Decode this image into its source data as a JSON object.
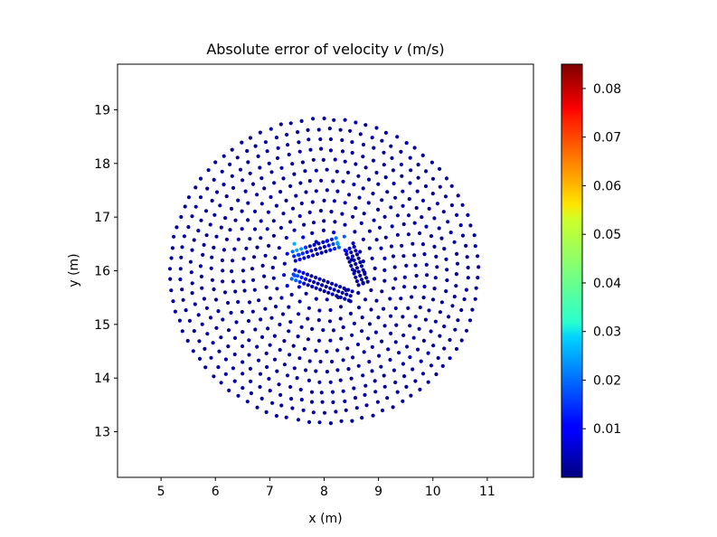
{
  "chart_data": {
    "type": "scatter",
    "title": "Absolute error of velocity v (m/s)",
    "title_parts": {
      "before": "Absolute error of velocity ",
      "var": "v",
      "after": " (m/s)"
    },
    "xlabel": "x (m)",
    "ylabel": "y (m)",
    "xlim": [
      4.2,
      11.85
    ],
    "ylim": [
      12.15,
      19.85
    ],
    "xticks": [
      5,
      6,
      7,
      8,
      9,
      10,
      11
    ],
    "yticks": [
      13,
      14,
      15,
      16,
      17,
      18,
      19
    ],
    "xtick_labels": [
      "5",
      "6",
      "7",
      "8",
      "9",
      "10",
      "11"
    ],
    "ytick_labels": [
      "13",
      "14",
      "15",
      "16",
      "17",
      "18",
      "19"
    ],
    "grid": false,
    "colormap": "jet",
    "colorbar": {
      "vmin": 0.0,
      "vmax": 0.085,
      "ticks": [
        0.01,
        0.02,
        0.03,
        0.04,
        0.05,
        0.06,
        0.07,
        0.08
      ],
      "tick_labels": [
        "0.01",
        "0.02",
        "0.03",
        "0.04",
        "0.05",
        "0.06",
        "0.07",
        "0.08"
      ]
    },
    "domain": {
      "shape": "disk with triangular hole",
      "center": [
        8.0,
        16.0
      ],
      "outer_radius": 2.9,
      "hole_vertices": [
        [
          7.5,
          16.1
        ],
        [
          8.3,
          16.35
        ],
        [
          8.55,
          15.7
        ]
      ]
    },
    "error_hotspots": [
      {
        "x": 7.5,
        "y": 16.45,
        "value": 0.028
      },
      {
        "x": 8.3,
        "y": 16.55,
        "value": 0.026
      },
      {
        "x": 7.45,
        "y": 15.85,
        "value": 0.02
      }
    ],
    "background_error": 0.003
  }
}
